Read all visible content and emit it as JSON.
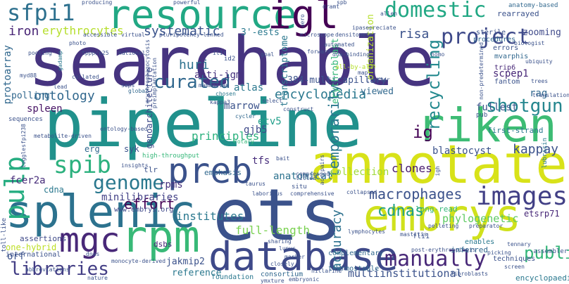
{
  "words": [
    {
      "text": "searchable",
      "c": "#463480"
    },
    {
      "text": "pipeline",
      "c": "#21918c"
    },
    {
      "text": "ets",
      "c": "#3b528b"
    },
    {
      "text": "splenic",
      "c": "#2c728e"
    },
    {
      "text": "annotated",
      "c": "#d8e219"
    },
    {
      "text": "embrys",
      "c": "#d0e11c"
    },
    {
      "text": "database",
      "c": "#3e4989"
    },
    {
      "text": "riken",
      "c": "#3dbc74"
    },
    {
      "text": "resource",
      "c": "#22a884"
    },
    {
      "text": "mgc",
      "c": "#482878"
    },
    {
      "text": "rpm",
      "c": "#38b977"
    },
    {
      "text": "preb",
      "c": "#3b528b"
    },
    {
      "text": "libraries",
      "c": "#433e85"
    },
    {
      "text": "images",
      "c": "#424086"
    },
    {
      "text": "pulp",
      "c": "#26ad81"
    },
    {
      "text": "igl",
      "c": "#440154"
    },
    {
      "text": "manually",
      "c": "#482878"
    },
    {
      "text": "sfpi1",
      "c": "#2d708e"
    },
    {
      "text": "domestic",
      "c": "#22a884"
    },
    {
      "text": "project",
      "c": "#3e4989"
    },
    {
      "text": "genome",
      "c": "#2a788e"
    },
    {
      "text": "spib",
      "c": "#2cb17e"
    },
    {
      "text": "recycling",
      "c": "#23898e"
    },
    {
      "text": "curated",
      "c": "#31688e"
    },
    {
      "text": "shotgun",
      "c": "#24868e"
    },
    {
      "text": "macrophages",
      "c": "#3b528b"
    },
    {
      "text": "encyclopedia",
      "c": "#2a788e"
    },
    {
      "text": "public",
      "c": "#35b779"
    },
    {
      "text": "ontology",
      "c": "#31688e"
    },
    {
      "text": "systematic",
      "c": "#3a538b"
    },
    {
      "text": "erythrocytes",
      "c": "#b5de2b"
    },
    {
      "text": "temporarily",
      "c": "#2a788e"
    },
    {
      "text": "cdnas",
      "c": "#1f9e89"
    },
    {
      "text": "iron",
      "c": "#482475"
    },
    {
      "text": "huri",
      "c": "#2c718e"
    },
    {
      "text": "effort",
      "c": "#440154"
    },
    {
      "text": "kappay",
      "c": "#3b528b"
    },
    {
      "text": "accuracy",
      "c": "#2c718e"
    },
    {
      "text": "multiinstitutional",
      "c": "#3b528b"
    },
    {
      "text": "fcer2a",
      "c": "#472c7a"
    },
    {
      "text": "blastocyst",
      "c": "#3b528b"
    },
    {
      "text": "phylogenetic",
      "c": "#5ec962"
    },
    {
      "text": "full-length",
      "c": "#7ad151"
    },
    {
      "text": "collection",
      "c": "#a0da39"
    },
    {
      "text": "anatomical",
      "c": "#2c728e"
    },
    {
      "text": "institutes",
      "c": "#2a788e"
    },
    {
      "text": "principles",
      "c": "#2cb17e"
    },
    {
      "text": "minilibraries",
      "c": "#424086"
    },
    {
      "text": "spleen",
      "c": "#471365"
    },
    {
      "text": "fullest",
      "c": "#3b528b"
    },
    {
      "text": "ig",
      "c": "#440154"
    },
    {
      "text": "clones",
      "c": "#481b6d"
    },
    {
      "text": "rpms",
      "c": "#46337f"
    },
    {
      "text": "tfs",
      "c": "#472d7b"
    },
    {
      "text": "etv5",
      "c": "#1f9e89"
    },
    {
      "text": "gjb5",
      "c": "#3e4989"
    },
    {
      "text": "marrow",
      "c": "#3b528b"
    },
    {
      "text": "atlas",
      "c": "#2a788e"
    },
    {
      "text": "anti-igm",
      "c": "#46327e"
    },
    {
      "text": "384-multicapillary",
      "c": "#3b528b"
    },
    {
      "text": "viewed",
      "c": "#31688e"
    },
    {
      "text": "risa",
      "c": "#3b528b"
    },
    {
      "text": "scpep1",
      "c": "#482878"
    },
    {
      "text": "rag",
      "c": "#31688e"
    },
    {
      "text": "zooming",
      "c": "#3e4989"
    },
    {
      "text": "erg",
      "c": "#31688e"
    },
    {
      "text": "syk",
      "c": "#3b528b"
    },
    {
      "text": "3'-ests",
      "c": "#2a788e"
    },
    {
      "text": "polling",
      "c": "#31688e"
    },
    {
      "text": "transcriptome",
      "c": "#2a788e"
    },
    {
      "text": "erythroblast",
      "c": "#35b779"
    },
    {
      "text": "protoarray",
      "c": "#31688e"
    },
    {
      "text": "genoarchitecture",
      "c": "#3e4989"
    },
    {
      "text": "organization",
      "c": "#b5de2b"
    },
    {
      "text": "one-hybrid",
      "c": "#bddf26"
    },
    {
      "text": "orf",
      "c": "#3b528b"
    },
    {
      "text": "jakmip2",
      "c": "#3b528b"
    },
    {
      "text": "reference",
      "c": "#2a788e"
    },
    {
      "text": "emphasis",
      "c": "#31688e"
    },
    {
      "text": "etsrp71",
      "c": "#482878"
    },
    {
      "text": "long-read",
      "c": "#35b779"
    },
    {
      "text": "first-strand",
      "c": "#2a788e"
    },
    {
      "text": "cdna",
      "c": "#2a788e"
    },
    {
      "text": "dsbs",
      "c": "#482878"
    },
    {
      "text": "tlr",
      "c": "#3b528b"
    },
    {
      "text": "encyclopaedia",
      "c": "#2a788e"
    },
    {
      "text": "assertions",
      "c": "#3e4989"
    },
    {
      "text": "international",
      "c": "#3b528b"
    },
    {
      "text": "consortium",
      "c": "#31688e"
    },
    {
      "text": "foundation",
      "c": "#2a788e"
    },
    {
      "text": "thermostable",
      "c": "#31688e"
    },
    {
      "text": "complementary",
      "c": "#31688e"
    },
    {
      "text": "inferred",
      "c": "#31688e"
    },
    {
      "text": "techniques",
      "c": "#3b528b"
    },
    {
      "text": "enables",
      "c": "#2a788e"
    },
    {
      "text": "trip6",
      "c": "#482878"
    },
    {
      "text": "errors",
      "c": "#3b528b"
    },
    {
      "text": "sterile",
      "c": "#3b528b"
    },
    {
      "text": "procedures",
      "c": "#31688e"
    },
    {
      "text": "mvarphis",
      "c": "#31688e"
    },
    {
      "text": "fantom",
      "c": "#3b528b"
    },
    {
      "text": "rearrayed",
      "c": "#3b528b"
    },
    {
      "text": "anatomy-based",
      "c": "#31688e"
    },
    {
      "text": "seps",
      "c": "#3b528b"
    },
    {
      "text": "global",
      "c": "#31688e"
    },
    {
      "text": "chosen",
      "c": "#2a788e"
    },
    {
      "text": "kappa3",
      "c": "#3b528b"
    },
    {
      "text": "cycler",
      "c": "#31688e"
    },
    {
      "text": "rotary",
      "c": "#35b779"
    },
    {
      "text": "tppp/p25",
      "c": "#3b528b"
    },
    {
      "text": "myd88",
      "c": "#3b528b"
    },
    {
      "text": "gadamp",
      "c": "#2a788e"
    },
    {
      "text": "national",
      "c": "#3b528b"
    },
    {
      "text": "accessible",
      "c": "#3b528b"
    },
    {
      "text": "virtual",
      "c": "#3b528b"
    },
    {
      "text": "photo",
      "c": "#3b528b"
    },
    {
      "text": "goal",
      "c": "#3b528b"
    },
    {
      "text": "id2",
      "c": "#3b528b"
    },
    {
      "text": "il1r",
      "c": "#3b528b"
    },
    {
      "text": "mammalian",
      "c": "#3b528b"
    },
    {
      "text": "microscope",
      "c": "#3b528b"
    },
    {
      "text": "densitometer",
      "c": "#3b528b"
    },
    {
      "text": "dna-binding",
      "c": "#3b528b"
    },
    {
      "text": "all-by-all",
      "c": "#b5de2b"
    },
    {
      "text": "map",
      "c": "#3b528b"
    },
    {
      "text": "aero",
      "c": "#3b528b"
    },
    {
      "text": "dramt",
      "c": "#3b528b"
    },
    {
      "text": "spb",
      "c": "#3b528b"
    },
    {
      "text": "producing",
      "c": "#3b528b"
    },
    {
      "text": "sequences",
      "c": "#3b528b"
    },
    {
      "text": "sfpi238",
      "c": "#3b528b"
    },
    {
      "text": "high-throughput",
      "c": "#35b779"
    },
    {
      "text": "insights",
      "c": "#3b528b"
    },
    {
      "text": "toll-like",
      "c": "#3b528b"
    },
    {
      "text": "www.embrys.org",
      "c": "#3e4989"
    },
    {
      "text": "situ",
      "c": "#3b528b"
    },
    {
      "text": "taurus",
      "c": "#3b528b"
    },
    {
      "text": "laborious",
      "c": "#3b528b"
    },
    {
      "text": "comprehensive",
      "c": "#3b528b"
    },
    {
      "text": "igh",
      "c": "#3b528b"
    },
    {
      "text": "lubricin",
      "c": "#2a788e"
    },
    {
      "text": "fli1",
      "c": "#3b528b"
    },
    {
      "text": "pub",
      "c": "#3b528b"
    },
    {
      "text": "bait",
      "c": "#3b528b"
    },
    {
      "text": "select",
      "c": "#3b528b"
    },
    {
      "text": "construct",
      "c": "#3b528b"
    },
    {
      "text": "monocyte-derived",
      "c": "#3b528b"
    },
    {
      "text": "closely",
      "c": "#3b528b"
    },
    {
      "text": "sharing",
      "c": "#3b528b"
    },
    {
      "text": "lymphocytes",
      "c": "#3b528b"
    },
    {
      "text": "preparator",
      "c": "#3b528b"
    },
    {
      "text": "picking",
      "c": "#3b528b"
    },
    {
      "text": "trees",
      "c": "#3b528b"
    },
    {
      "text": "biologist",
      "c": "#3b528b"
    },
    {
      "text": "-assembler",
      "c": "#3b528b"
    },
    {
      "text": "screen",
      "c": "#3b528b"
    },
    {
      "text": "cluster",
      "c": "#3b528b"
    },
    {
      "text": "collated",
      "c": "#3b528b"
    },
    {
      "text": "pooling",
      "c": "#3b528b"
    },
    {
      "text": "homo",
      "c": "#3b528b"
    },
    {
      "text": "pluripotency-linked",
      "c": "#3b528b"
    },
    {
      "text": "ipasepreciate",
      "c": "#3b528b"
    },
    {
      "text": "erythrophagocytosis",
      "c": "#3b528b"
    },
    {
      "text": "preimplantation",
      "c": "#3b528b"
    },
    {
      "text": "forward",
      "c": "#3b528b"
    },
    {
      "text": "non-predetermined",
      "c": "#3b528b"
    },
    {
      "text": "post-erythropoiesis",
      "c": "#3b528b"
    },
    {
      "text": "collapsed",
      "c": "#3b528b"
    },
    {
      "text": "dnas",
      "c": "#3b528b"
    },
    {
      "text": "abbreviations",
      "c": "#3b528b"
    },
    {
      "text": "nature",
      "c": "#3b528b"
    },
    {
      "text": "embryonic",
      "c": "#3b528b"
    },
    {
      "text": "ymxture",
      "c": "#3b528b"
    },
    {
      "text": "mastitis",
      "c": "#3b528b"
    },
    {
      "text": "fibroblasts",
      "c": "#3b528b"
    },
    {
      "text": "translational",
      "c": "#3b528b"
    },
    {
      "text": "tennary",
      "c": "#3b528b"
    },
    {
      "text": "allen",
      "c": "#3b528b"
    },
    {
      "text": "automated",
      "c": "#3b528b"
    },
    {
      "text": "powerful",
      "c": "#3b528b"
    },
    {
      "text": "hillarine",
      "c": "#3b528b"
    },
    {
      "text": "marker",
      "c": "#3b528b"
    },
    {
      "text": "lupus",
      "c": "#3b528b"
    },
    {
      "text": "ubiquity",
      "c": "#3b528b"
    },
    {
      "text": "pelleting",
      "c": "#3b528b"
    },
    {
      "text": "metabolite-driven",
      "c": "#3b528b"
    },
    {
      "text": "lead",
      "c": "#3b528b"
    },
    {
      "text": "titled",
      "c": "#3b528b"
    },
    {
      "text": "toggle",
      "c": "#3b528b"
    },
    {
      "text": "compressed",
      "c": "#3b528b"
    },
    {
      "text": "ontology-based",
      "c": "#3b528b"
    },
    {
      "text": "acc-pairs",
      "c": "#3b528b"
    }
  ]
}
